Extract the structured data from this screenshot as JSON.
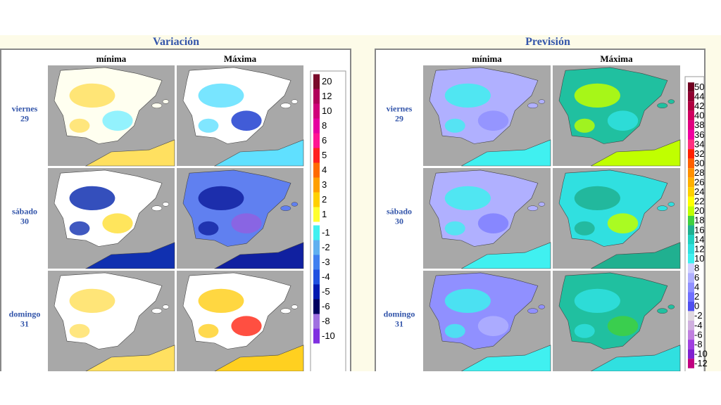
{
  "panels": [
    {
      "title": "Variación",
      "columns": [
        "mínima",
        "Máxima"
      ],
      "rows": [
        {
          "day": "viernes",
          "date": "29"
        },
        {
          "day": "sábado",
          "date": "30"
        },
        {
          "day": "domingo",
          "date": "31"
        }
      ],
      "legend": [
        {
          "label": 20,
          "color": "#7a0a2a"
        },
        {
          "label": 12,
          "color": "#b0005a"
        },
        {
          "label": 10,
          "color": "#d0007a"
        },
        {
          "label": 8,
          "color": "#e600a0"
        },
        {
          "label": 6,
          "color": "#ff1493"
        },
        {
          "label": 5,
          "color": "#ff2020"
        },
        {
          "label": 4,
          "color": "#ff6a00"
        },
        {
          "label": 3,
          "color": "#ff9f00"
        },
        {
          "label": 2,
          "color": "#ffd000"
        },
        {
          "label": 1,
          "color": "#ffff30"
        },
        {
          "label": -1,
          "color": "#40f0f0"
        },
        {
          "label": -2,
          "color": "#60b0f0"
        },
        {
          "label": -3,
          "color": "#4080f0"
        },
        {
          "label": -4,
          "color": "#2050e0"
        },
        {
          "label": -5,
          "color": "#0018b0"
        },
        {
          "label": -6,
          "color": "#000060"
        },
        {
          "label": -8,
          "color": "#a070e0"
        },
        {
          "label": -10,
          "color": "#8030e0"
        }
      ]
    },
    {
      "title": "Previsión",
      "columns": [
        "mínima",
        "Máxima"
      ],
      "rows": [
        {
          "day": "viernes",
          "date": "29"
        },
        {
          "day": "sábado",
          "date": "30"
        },
        {
          "day": "domingo",
          "date": "31"
        }
      ],
      "legend": [
        {
          "label": 50,
          "color": "#700020"
        },
        {
          "label": 44,
          "color": "#900030"
        },
        {
          "label": 42,
          "color": "#b00040"
        },
        {
          "label": 40,
          "color": "#d00060"
        },
        {
          "label": 38,
          "color": "#e00080"
        },
        {
          "label": 36,
          "color": "#f000a0"
        },
        {
          "label": 34,
          "color": "#ff3080"
        },
        {
          "label": 32,
          "color": "#ff2000"
        },
        {
          "label": 30,
          "color": "#ff6000"
        },
        {
          "label": 28,
          "color": "#ff9000"
        },
        {
          "label": 26,
          "color": "#ffb000"
        },
        {
          "label": 24,
          "color": "#ffd000"
        },
        {
          "label": 22,
          "color": "#ffff00"
        },
        {
          "label": 20,
          "color": "#c0ff00"
        },
        {
          "label": 18,
          "color": "#40d040"
        },
        {
          "label": 16,
          "color": "#20b090"
        },
        {
          "label": 14,
          "color": "#20d0c0"
        },
        {
          "label": 12,
          "color": "#30e0e0"
        },
        {
          "label": 10,
          "color": "#40f0f0"
        },
        {
          "label": 8,
          "color": "#d0d0ff"
        },
        {
          "label": 6,
          "color": "#b0b0ff"
        },
        {
          "label": 4,
          "color": "#9090ff"
        },
        {
          "label": 2,
          "color": "#7070ff"
        },
        {
          "label": 0,
          "color": "#5050f0"
        },
        {
          "label": -2,
          "color": "#e0d8e0"
        },
        {
          "label": -4,
          "color": "#d0b0e0"
        },
        {
          "label": -6,
          "color": "#c080e0"
        },
        {
          "label": -8,
          "color": "#a040e0"
        },
        {
          "label": -10,
          "color": "#8020d0"
        },
        {
          "label": -12,
          "color": "#c00080"
        }
      ]
    }
  ]
}
